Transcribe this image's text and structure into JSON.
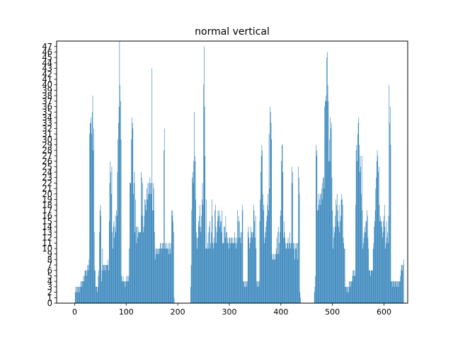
{
  "chart_data": {
    "type": "bar",
    "title": "normal vertical",
    "xlabel": "",
    "ylabel": "",
    "xlim": [
      -35,
      646
    ],
    "ylim": [
      0,
      48
    ],
    "xticks": [
      0,
      100,
      200,
      300,
      400,
      500,
      600
    ],
    "yticks": [
      0,
      1,
      2,
      3,
      4,
      5,
      6,
      7,
      8,
      9,
      10,
      11,
      12,
      13,
      14,
      15,
      16,
      17,
      18,
      19,
      20,
      21,
      22,
      23,
      24,
      25,
      26,
      27,
      28,
      29,
      30,
      31,
      32,
      33,
      34,
      35,
      36,
      37,
      38,
      39,
      40,
      41,
      42,
      43,
      44,
      45,
      46,
      47
    ],
    "grid": false,
    "color": "#1f77b4",
    "x_start": 0,
    "x_step": 1,
    "values": [
      0,
      2,
      3,
      2,
      3,
      3,
      2,
      3,
      3,
      2,
      3,
      3,
      4,
      4,
      3,
      4,
      4,
      5,
      4,
      5,
      6,
      6,
      6,
      5,
      6,
      7,
      6,
      7,
      8,
      31,
      33,
      33,
      34,
      31,
      35,
      38,
      28,
      32,
      13,
      6,
      6,
      3,
      3,
      3,
      2,
      3,
      5,
      6,
      13,
      17,
      18,
      16,
      4,
      6,
      10,
      7,
      7,
      6,
      7,
      7,
      6,
      7,
      7,
      7,
      7,
      8,
      6,
      15,
      22,
      26,
      24,
      20,
      25,
      13,
      10,
      14,
      15,
      12,
      14,
      16,
      13,
      17,
      16,
      24,
      30,
      33,
      36,
      48,
      40,
      37,
      30,
      5,
      4,
      4,
      5,
      4,
      4,
      4,
      3,
      4,
      5,
      4,
      4,
      5,
      4,
      5,
      10,
      22,
      22,
      22,
      30,
      34,
      33,
      32,
      20,
      22,
      24,
      13,
      19,
      14,
      11,
      14,
      12,
      14,
      13,
      13,
      13,
      13,
      13,
      24,
      23,
      16,
      22,
      13,
      14,
      16,
      19,
      18,
      19,
      17,
      21,
      19,
      22,
      20,
      22,
      20,
      23,
      22,
      20,
      22,
      43,
      17,
      22,
      17,
      21,
      13,
      8,
      10,
      9,
      10,
      10,
      9,
      10,
      9,
      10,
      10,
      11,
      11,
      10,
      10,
      11,
      10,
      11,
      28,
      32,
      10,
      11,
      10,
      11,
      10,
      10,
      11,
      10,
      9,
      11,
      10,
      9,
      11,
      17,
      16,
      17,
      15,
      13,
      1,
      0,
      0,
      0,
      0,
      0,
      0,
      0,
      0,
      0,
      0,
      0,
      0,
      0,
      0,
      0,
      0,
      0,
      0,
      0,
      0,
      0,
      0,
      0,
      0,
      0,
      0,
      0,
      0,
      0,
      0,
      0,
      3,
      7,
      17,
      23,
      24,
      22,
      26,
      35,
      27,
      26,
      19,
      13,
      12,
      10,
      12,
      15,
      14,
      16,
      18,
      14,
      13,
      16,
      19,
      22,
      18,
      40,
      47,
      36,
      27,
      10,
      19,
      10,
      10,
      11,
      13,
      10,
      14,
      15,
      10,
      11,
      13,
      19,
      16,
      11,
      10,
      12,
      11,
      17,
      18,
      14,
      11,
      13,
      15,
      17,
      16,
      17,
      14,
      16,
      15,
      15,
      13,
      17,
      11,
      11,
      11,
      14,
      14,
      12,
      16,
      13,
      13,
      11,
      12,
      11,
      10,
      12,
      12,
      11,
      12,
      11,
      12,
      11,
      12,
      11,
      11,
      13,
      12,
      11,
      10,
      12,
      11,
      17,
      15,
      16,
      12,
      15,
      12,
      13,
      11,
      13,
      18,
      17,
      4,
      4,
      3,
      4,
      3,
      4,
      4,
      3,
      4,
      13,
      14,
      12,
      10,
      11,
      12,
      14,
      13,
      13,
      12,
      13,
      18,
      17,
      15,
      12,
      16,
      10,
      4,
      3,
      4,
      4,
      3,
      4,
      15,
      19,
      24,
      27,
      29,
      28,
      20,
      17,
      18,
      11,
      12,
      13,
      14,
      15,
      16,
      18,
      20,
      17,
      31,
      21,
      36,
      35,
      33,
      30,
      9,
      8,
      8,
      9,
      8,
      9,
      8,
      9,
      10,
      12,
      9,
      13,
      14,
      9,
      11,
      13,
      16,
      17,
      26,
      29,
      29,
      24,
      12,
      15,
      13,
      12,
      11,
      10,
      10,
      11,
      11,
      12,
      10,
      11,
      13,
      11,
      10,
      11,
      25,
      22,
      24,
      11,
      10,
      11,
      8,
      10,
      11,
      10,
      11,
      8,
      11,
      25,
      23,
      20,
      2,
      1,
      0,
      0,
      0,
      0,
      0,
      0,
      0,
      0,
      0,
      0,
      0,
      0,
      0,
      0,
      0,
      0,
      0,
      0,
      0,
      0,
      0,
      0,
      0,
      0,
      0,
      0,
      2,
      3,
      5,
      29,
      27,
      28,
      17,
      17,
      20,
      18,
      19,
      20,
      18,
      20,
      21,
      19,
      22,
      23,
      23,
      21,
      36,
      37,
      38,
      37,
      45,
      46,
      40,
      37,
      26,
      30,
      26,
      34,
      32,
      33,
      23,
      17,
      10,
      14,
      12,
      13,
      16,
      14,
      19,
      18,
      20,
      17,
      15,
      14,
      18,
      13,
      15,
      16,
      19,
      20,
      19,
      18,
      12,
      11,
      10,
      10,
      3,
      3,
      3,
      2,
      3,
      3,
      2,
      3,
      4,
      4,
      3,
      4,
      4,
      4,
      5,
      6,
      6,
      5,
      6,
      5,
      18,
      28,
      29,
      26,
      31,
      33,
      34,
      29,
      24,
      27,
      25,
      20,
      27,
      17,
      10,
      11,
      12,
      13,
      14,
      13,
      15,
      15,
      17,
      16,
      12,
      10,
      6,
      6,
      6,
      5,
      6,
      6,
      6,
      6,
      10,
      11,
      14,
      15,
      17,
      21,
      23,
      26,
      28,
      27,
      24,
      25,
      18,
      15,
      16,
      15,
      15,
      14,
      12,
      13,
      15,
      16,
      18,
      14,
      10,
      11,
      15,
      12,
      13,
      11,
      16,
      40,
      33,
      36,
      29,
      4,
      4,
      4,
      3,
      4,
      4,
      4,
      3,
      4,
      4,
      4,
      3,
      4,
      4,
      3,
      4,
      4,
      4,
      5,
      6,
      7,
      7,
      6,
      7,
      8,
      0
    ]
  }
}
